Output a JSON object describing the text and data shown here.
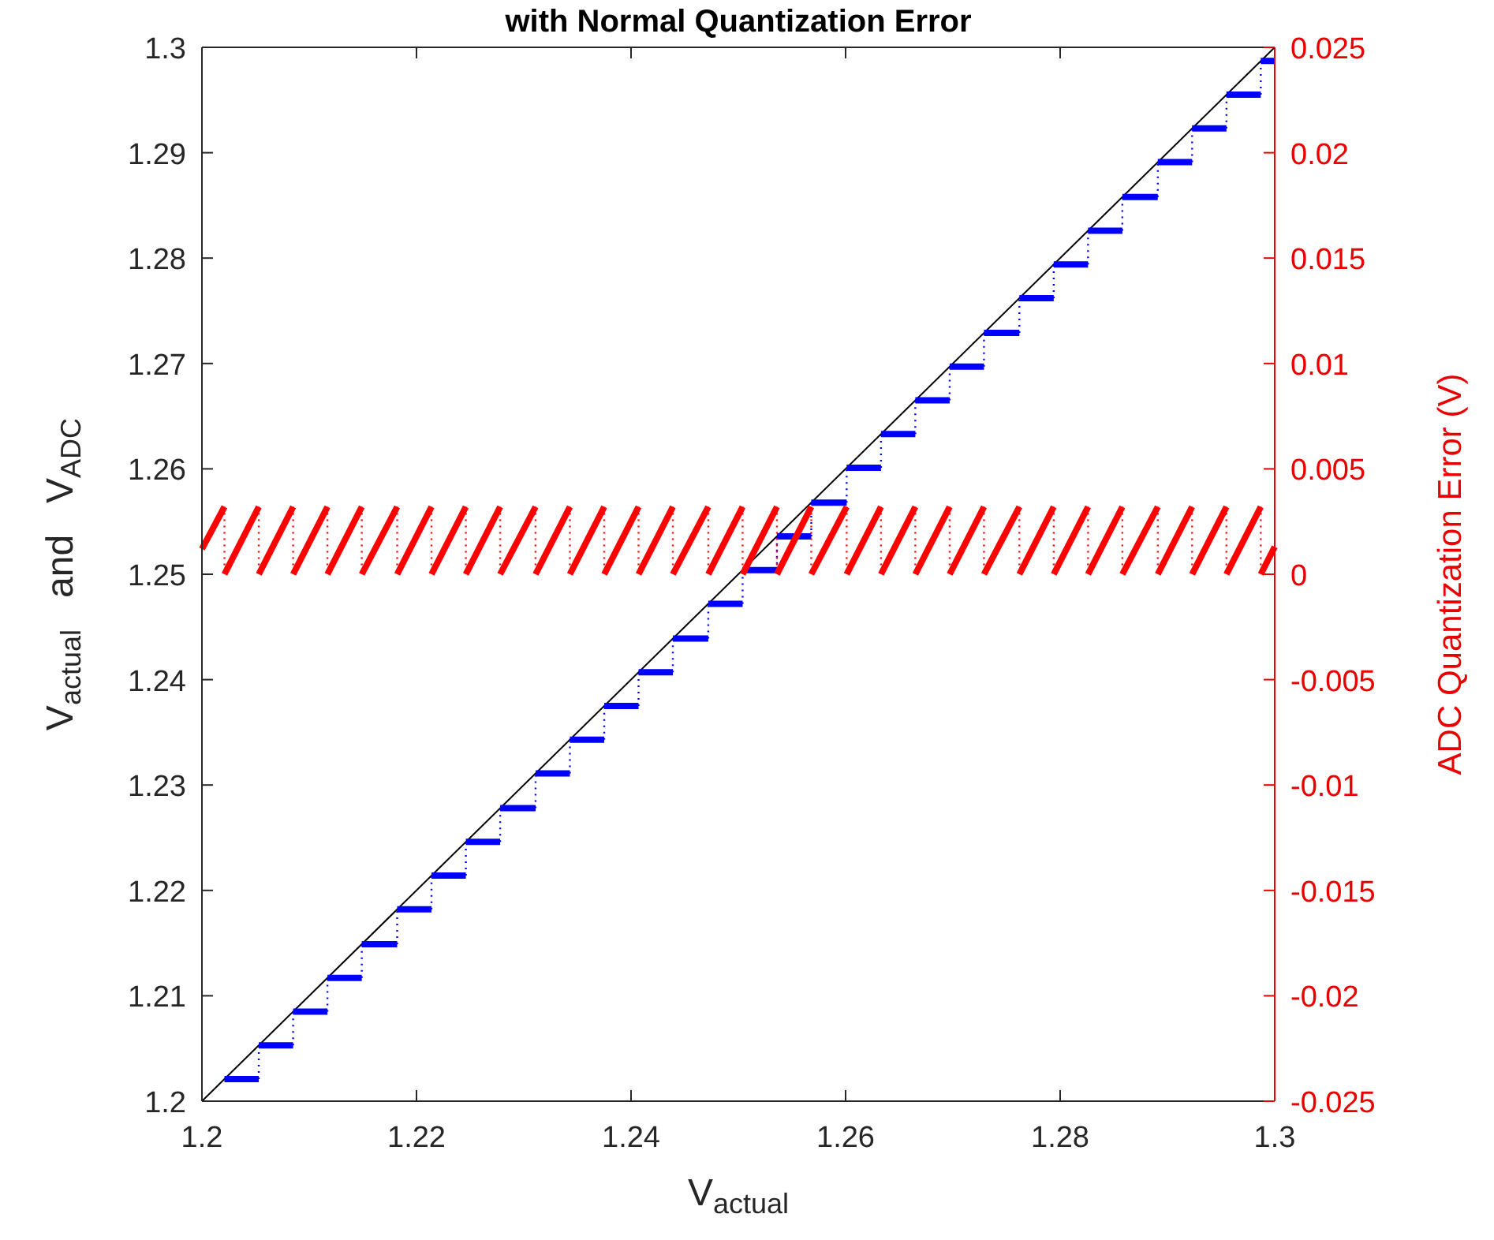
{
  "chart_data": {
    "type": "line",
    "title": "with Normal Quantization Error",
    "xlabel": "V$_{actual}$",
    "ylabel": "V$_{actual}$   and   V$_{ADC}$",
    "y2label": "ADC Quantization Error (V)",
    "xlim": [
      1.2,
      1.3
    ],
    "xticks": [
      1.2,
      1.22,
      1.24,
      1.26,
      1.28,
      1.3
    ],
    "ylim": [
      1.2,
      1.3
    ],
    "yticks": [
      1.2,
      1.21,
      1.22,
      1.23,
      1.24,
      1.25,
      1.26,
      1.27,
      1.28,
      1.29,
      1.3
    ],
    "y2lim": [
      -0.025,
      0.025
    ],
    "y2ticks": [
      -0.025,
      -0.02,
      -0.015,
      -0.01,
      -0.005,
      0,
      0.005,
      0.01,
      0.015,
      0.02,
      0.025
    ],
    "grid": false,
    "series": [
      {
        "color": "#000000",
        "x": [
          1.2,
          1.3
        ],
        "values": [
          1.2,
          1.3
        ]
      },
      {
        "type": "step",
        "color": "#0000ff",
        "x": [
          1.2021,
          1.2053,
          1.2085,
          1.2117,
          1.2149,
          1.2182,
          1.2214,
          1.2246,
          1.2278,
          1.2311,
          1.2343,
          1.2375,
          1.2407,
          1.2439,
          1.2472,
          1.2504,
          1.2536,
          1.2568,
          1.2601,
          1.2633,
          1.2665,
          1.2697,
          1.2729,
          1.2762,
          1.2794,
          1.2826,
          1.2858,
          1.2891,
          1.2923,
          1.2955,
          1.2987
        ],
        "values": [
          1.2021,
          1.2053,
          1.2085,
          1.2117,
          1.2149,
          1.2182,
          1.2214,
          1.2246,
          1.2278,
          1.2311,
          1.2343,
          1.2375,
          1.2407,
          1.2439,
          1.2472,
          1.2504,
          1.2536,
          1.2568,
          1.2601,
          1.2633,
          1.2665,
          1.2697,
          1.2729,
          1.2762,
          1.2794,
          1.2826,
          1.2858,
          1.2891,
          1.2923,
          1.2955,
          1.2987
        ]
      },
      {
        "axis": "y2",
        "color": "#ff0000",
        "x": [
          1.2,
          1.2021,
          1.2021,
          1.2053,
          1.2053,
          1.2085,
          1.2085,
          1.2117,
          1.2117,
          1.2149,
          1.2149,
          1.2182,
          1.2182,
          1.2214,
          1.2214,
          1.2246,
          1.2246,
          1.2278,
          1.2278,
          1.2311,
          1.2311,
          1.2343,
          1.2343,
          1.2375,
          1.2375,
          1.2407,
          1.2407,
          1.2439,
          1.2439,
          1.2472,
          1.2472,
          1.2504,
          1.2504,
          1.2536,
          1.2536,
          1.2568,
          1.2568,
          1.2601,
          1.2601,
          1.2633,
          1.2633,
          1.2665,
          1.2665,
          1.2697,
          1.2697,
          1.2729,
          1.2729,
          1.2762,
          1.2762,
          1.2794,
          1.2794,
          1.2826,
          1.2826,
          1.2858,
          1.2858,
          1.2891,
          1.2891,
          1.2923,
          1.2923,
          1.2955,
          1.2955,
          1.2987,
          1.2987,
          1.3
        ],
        "values": [
          0.0012,
          0.0032,
          0,
          0.0032,
          0,
          0.0032,
          0,
          0.0032,
          0,
          0.0032,
          0,
          0.0032,
          0,
          0.0032,
          0,
          0.0032,
          0,
          0.0032,
          0,
          0.0032,
          0,
          0.0032,
          0,
          0.0032,
          0,
          0.0032,
          0,
          0.0032,
          0,
          0.0032,
          0,
          0.0032,
          0,
          0.0032,
          0,
          0.0032,
          0,
          0.0032,
          0,
          0.0032,
          0,
          0.0032,
          0,
          0.0032,
          0,
          0.0032,
          0,
          0.0032,
          0,
          0.0032,
          0,
          0.0032,
          0,
          0.0032,
          0,
          0.0032,
          0,
          0.0032,
          0,
          0.0032,
          0,
          0.0032,
          0,
          0.0013
        ]
      }
    ]
  }
}
